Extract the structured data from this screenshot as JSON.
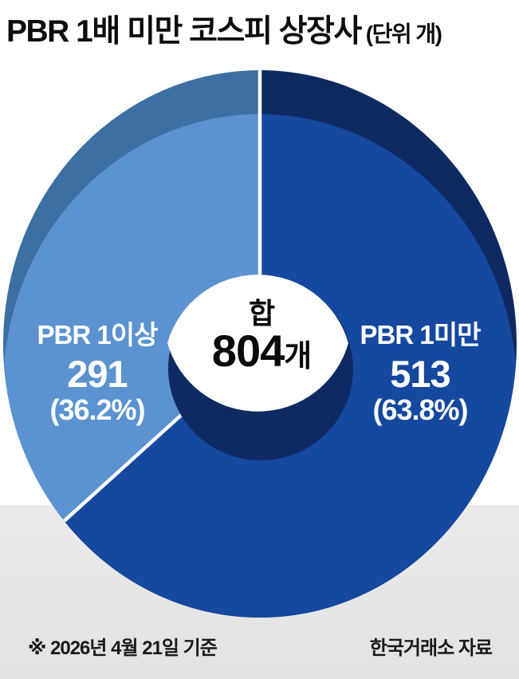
{
  "title": {
    "main": "PBR 1배 미만 코스피 상장사",
    "unit": "(단위 개)"
  },
  "chart_data": {
    "type": "pie",
    "title": "PBR 1배 미만 코스피 상장사",
    "unit_label": "(단위 개)",
    "start_angle": "12-oclock",
    "first_slice_direction": "clockwise",
    "total": {
      "label": "합",
      "value": 804,
      "suffix": "개"
    },
    "slices": [
      {
        "label": "PBR 1미만",
        "value": 513,
        "pct": 63.8,
        "pct_display": "(63.8%)",
        "color": "#15489f",
        "rim_color": "#0e2a60"
      },
      {
        "label": "PBR 1이상",
        "value": 291,
        "pct": 36.2,
        "pct_display": "(36.2%)",
        "color": "#5b93d1",
        "rim_color": "#3c70a2"
      }
    ]
  },
  "footer": {
    "note": "※ 2026년 4월 21일 기준",
    "source": "한국거래소 자료"
  },
  "colors": {
    "background": "#ffffff",
    "footer_band": "#e5e5e5",
    "divider": "#ffffff",
    "hole": "#0e2a63",
    "lens": "#ffffff",
    "title_text": "#0d0d0d",
    "label_text": "#ffffff",
    "footer_text": "#1a1a1a"
  }
}
